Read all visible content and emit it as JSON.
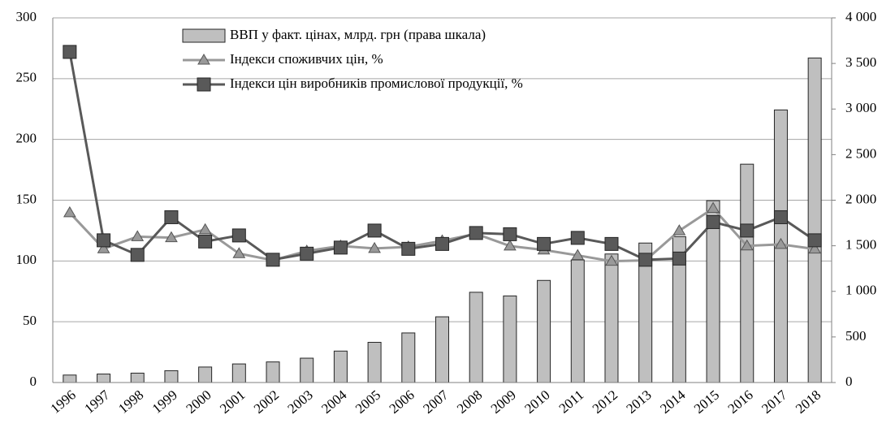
{
  "chart_data": {
    "type": "combo",
    "categories": [
      "1996",
      "1997",
      "1998",
      "1999",
      "2000",
      "2001",
      "2002",
      "2003",
      "2004",
      "2005",
      "2006",
      "2007",
      "2008",
      "2009",
      "2010",
      "2011",
      "2012",
      "2013",
      "2014",
      "2015",
      "2016",
      "2017",
      "2018"
    ],
    "series": [
      {
        "name": "ВВП у факт. цінах,  млрд. грн (права шкала)",
        "type": "bar",
        "axis": "y2",
        "color": "#bfbfbf",
        "values": [
          82,
          93,
          103,
          130,
          170,
          204,
          226,
          267,
          345,
          441,
          544,
          721,
          990,
          950,
          1120,
          1345,
          1410,
          1530,
          1600,
          1995,
          2395,
          2990,
          3560
        ]
      },
      {
        "name": "Індекси споживчих цін, %",
        "type": "line",
        "marker": "triangle",
        "color": "#999999",
        "values": [
          139.7,
          110.1,
          120,
          119.2,
          125.8,
          106.1,
          100.6,
          108.2,
          112.3,
          110.3,
          111.6,
          116.6,
          122.3,
          112.3,
          109.1,
          104.6,
          99.8,
          100.5,
          124.9,
          143.3,
          112.4,
          113.7,
          109.8
        ]
      },
      {
        "name": "Індекси цін виробників промислової продукції, %",
        "type": "line",
        "marker": "square",
        "color": "#595959",
        "values": [
          272,
          117,
          105,
          136,
          116,
          121,
          101,
          106,
          111,
          125,
          110,
          114,
          123,
          122,
          114,
          119,
          114,
          101,
          102,
          132,
          125,
          136,
          117
        ]
      }
    ],
    "ylim": [
      0,
      300
    ],
    "yticks": [
      0,
      50,
      100,
      150,
      200,
      250,
      300
    ],
    "y2lim": [
      0,
      4000
    ],
    "y2ticks": [
      0,
      500,
      {
        "value": 1000,
        "label": "1 000"
      },
      {
        "value": 1500,
        "label": "1 500"
      },
      {
        "value": 2000,
        "label": "2 000"
      },
      {
        "value": 2500,
        "label": "2 500"
      },
      {
        "value": 3000,
        "label": "3 000"
      },
      {
        "value": 3500,
        "label": "3 500"
      },
      {
        "value": 4000,
        "label": "4 000"
      }
    ],
    "grid": true
  }
}
